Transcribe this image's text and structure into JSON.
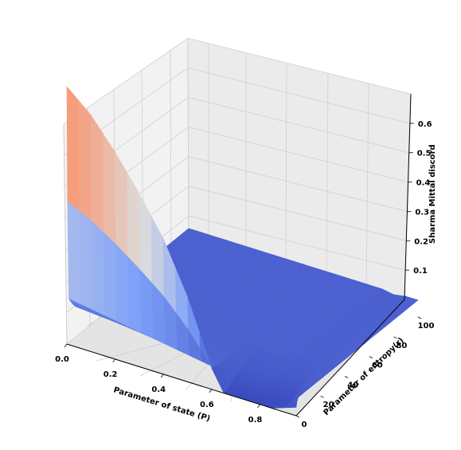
{
  "chart_data": {
    "type": "surface3d",
    "colormap": "coolwarm",
    "xlabel": "Parameter of state (P)",
    "ylabel": "Parameter of entropy(r)",
    "zlabel": "Sharma Mittal discord",
    "x_ticks": [
      "0.0",
      "0.2",
      "0.4",
      "0.6",
      "0.8"
    ],
    "y_ticks": [
      "0",
      "20",
      "40",
      "60",
      "80",
      "100"
    ],
    "z_ticks": [
      "0.1",
      "0.2",
      "0.3",
      "0.4",
      "0.5",
      "0.6"
    ],
    "xlim": [
      0,
      0.95
    ],
    "ylim": [
      0,
      100
    ],
    "zlim": [
      0,
      0.7
    ],
    "grid": true,
    "surface_samples": {
      "P": [
        0.0,
        0.1,
        0.2,
        0.3,
        0.4,
        0.5,
        0.6,
        0.7,
        0.8,
        0.9,
        0.95
      ],
      "r_near_zero": 0,
      "discord_at_r0": [
        0.61,
        0.56,
        0.49,
        0.41,
        0.32,
        0.2,
        0.05,
        0.0,
        0.0,
        0.0,
        0.0
      ],
      "discord_at_r_small": [
        0.11,
        0.1,
        0.09,
        0.08,
        0.07,
        0.06,
        0.05,
        0.04,
        0.03,
        0.02,
        0.02
      ],
      "discord_at_r_large": [
        0.04,
        0.04,
        0.04,
        0.04,
        0.04,
        0.04,
        0.04,
        0.04,
        0.04,
        0.03,
        0.02
      ],
      "r": [
        1,
        20,
        40,
        60,
        80,
        100
      ]
    }
  }
}
